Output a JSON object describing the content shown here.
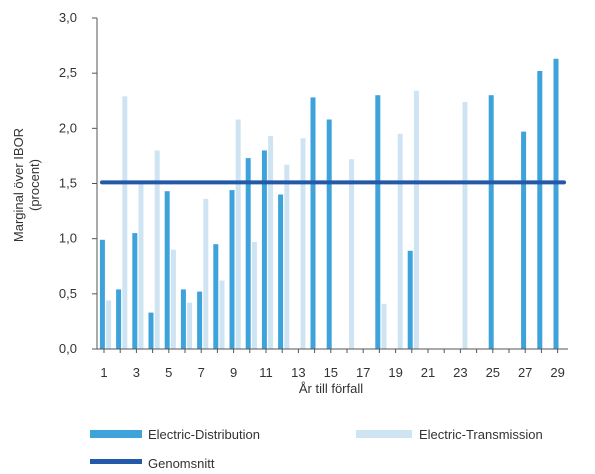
{
  "chart_data": {
    "type": "bar",
    "xlabel": "År till förfall",
    "ylabel": "Marginal över IBOR\n(procent)",
    "ylim": [
      0,
      3.0
    ],
    "yticks": [
      "0,0",
      "0,5",
      "1,0",
      "1,5",
      "2,0",
      "2,5",
      "3,0"
    ],
    "xticks": [
      "1",
      "3",
      "5",
      "7",
      "9",
      "11",
      "13",
      "15",
      "17",
      "19",
      "21",
      "23",
      "25",
      "27",
      "29"
    ],
    "grid": false,
    "legend_position": "bottom",
    "series": [
      {
        "name": "Electric-Distribution",
        "color": "#3ea3da",
        "points": [
          {
            "x": 1,
            "y": 0.99
          },
          {
            "x": 2,
            "y": 0.54
          },
          {
            "x": 3,
            "y": 1.05
          },
          {
            "x": 4,
            "y": 0.33
          },
          {
            "x": 5,
            "y": 1.43
          },
          {
            "x": 6,
            "y": 0.54
          },
          {
            "x": 7,
            "y": 0.52
          },
          {
            "x": 8,
            "y": 0.95
          },
          {
            "x": 9,
            "y": 1.44
          },
          {
            "x": 10,
            "y": 1.73
          },
          {
            "x": 11,
            "y": 1.8
          },
          {
            "x": 12,
            "y": 1.4
          },
          {
            "x": 14,
            "y": 2.28
          },
          {
            "x": 15,
            "y": 2.08
          },
          {
            "x": 18,
            "y": 2.3
          },
          {
            "x": 20,
            "y": 0.89
          },
          {
            "x": 25,
            "y": 2.3
          },
          {
            "x": 27,
            "y": 1.97
          },
          {
            "x": 28,
            "y": 2.52
          },
          {
            "x": 29,
            "y": 2.63
          }
        ]
      },
      {
        "name": "Electric-Transmission",
        "color": "#cfe4f3",
        "points": [
          {
            "x": 1,
            "y": 0.44
          },
          {
            "x": 2,
            "y": 2.29
          },
          {
            "x": 3,
            "y": 1.52
          },
          {
            "x": 4,
            "y": 1.8
          },
          {
            "x": 5,
            "y": 0.9
          },
          {
            "x": 6,
            "y": 0.42
          },
          {
            "x": 7,
            "y": 1.36
          },
          {
            "x": 8,
            "y": 0.62
          },
          {
            "x": 9,
            "y": 2.08
          },
          {
            "x": 10,
            "y": 0.97
          },
          {
            "x": 11,
            "y": 1.93
          },
          {
            "x": 12,
            "y": 1.67
          },
          {
            "x": 13,
            "y": 1.91
          },
          {
            "x": 16,
            "y": 1.72
          },
          {
            "x": 18,
            "y": 0.41
          },
          {
            "x": 19,
            "y": 1.95
          },
          {
            "x": 20,
            "y": 2.34
          },
          {
            "x": 23,
            "y": 2.24
          }
        ]
      }
    ],
    "reference_line": {
      "name": "Genomsnitt",
      "value": 1.51,
      "color": "#2458a8"
    }
  }
}
